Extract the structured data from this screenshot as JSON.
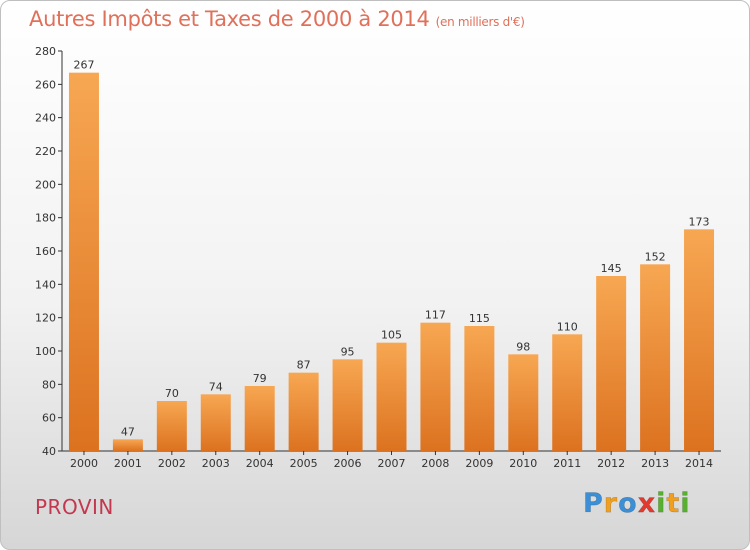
{
  "header": {
    "title": "Autres Impôts et Taxes de 2000 à 2014",
    "unit": "(en milliers d'€)"
  },
  "footer": {
    "place": "PROVIN",
    "logo_text": "Proxiti",
    "logo_letters": [
      {
        "ch": "P",
        "color": "#3a8fd6"
      },
      {
        "ch": "r",
        "color": "#f0a020"
      },
      {
        "ch": "o",
        "color": "#3a8fd6"
      },
      {
        "ch": "x",
        "color": "#e23a2e"
      },
      {
        "ch": "i",
        "color": "#58b030"
      },
      {
        "ch": "t",
        "color": "#f0a020"
      },
      {
        "ch": "i",
        "color": "#58b030"
      }
    ]
  },
  "colors": {
    "bar_light": "#f7a752",
    "bar_dark": "#dc7220",
    "title": "#e0705a",
    "place": "#c4384f"
  },
  "chart_data": {
    "type": "bar",
    "title": "Autres Impôts et Taxes de 2000 à 2014",
    "xlabel": "",
    "ylabel": "",
    "categories": [
      "2000",
      "2001",
      "2002",
      "2003",
      "2004",
      "2005",
      "2006",
      "2007",
      "2008",
      "2009",
      "2010",
      "2011",
      "2012",
      "2013",
      "2014"
    ],
    "values": [
      267,
      47,
      70,
      74,
      79,
      87,
      95,
      105,
      117,
      115,
      98,
      110,
      145,
      152,
      173
    ],
    "ylim": [
      40,
      280
    ],
    "yticks": [
      40,
      60,
      80,
      100,
      120,
      140,
      160,
      180,
      200,
      220,
      240,
      260,
      280
    ],
    "grid": false,
    "data_labels": true
  }
}
